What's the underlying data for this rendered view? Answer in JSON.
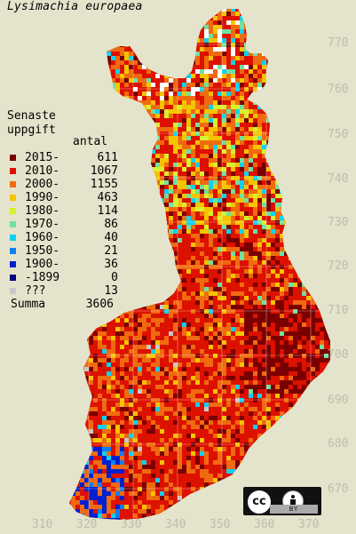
{
  "title": "Lysimachia europaea",
  "legend": {
    "heading": "Senaste\nuppgift",
    "column_header": "antal",
    "items": [
      {
        "label": "2015-",
        "count": "611",
        "color": "#7a0000"
      },
      {
        "label": "2010-",
        "count": "1067",
        "color": "#dd1100"
      },
      {
        "label": "2000-",
        "count": "1155",
        "color": "#f06a10"
      },
      {
        "label": "1990-",
        "count": "463",
        "color": "#f5c400"
      },
      {
        "label": "1980-",
        "count": "114",
        "color": "#d8f030"
      },
      {
        "label": "1970-",
        "count": "86",
        "color": "#70e0a0"
      },
      {
        "label": "1960-",
        "count": "40",
        "color": "#10d0f0"
      },
      {
        "label": "1950-",
        "count": "21",
        "color": "#1080f0"
      },
      {
        "label": "1900-",
        "count": "36",
        "color": "#0020d0"
      },
      {
        "label": "-1899",
        "count": "0",
        "color": "#000080"
      },
      {
        "label": "???",
        "count": "13",
        "color": "#c8c8c8"
      }
    ],
    "total_label": "Summa",
    "total_value": "3606"
  },
  "grid": {
    "y_labels": [
      "770",
      "760",
      "750",
      "740",
      "730",
      "720",
      "710",
      "700",
      "690",
      "680",
      "670"
    ],
    "x_labels": [
      "310",
      "320",
      "330",
      "340",
      "350",
      "360",
      "370"
    ],
    "line_color": "#ffffff"
  },
  "map_colors": {
    "land_background": "#d03010",
    "dark_south": "#8c0a00"
  },
  "license": {
    "cc_text": "cc",
    "by_text": "BY",
    "icon": "cc-by-license-icon"
  }
}
